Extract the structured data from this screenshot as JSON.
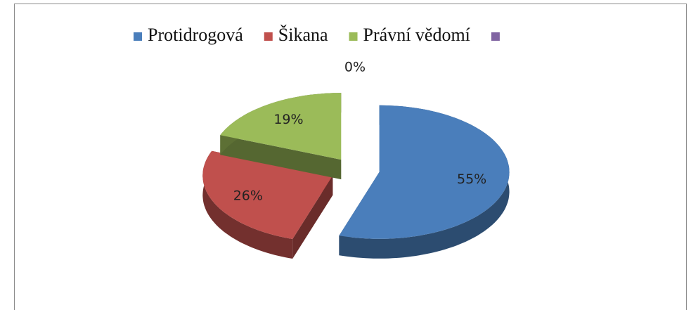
{
  "chart_data": {
    "type": "pie",
    "categories": [
      "Protidrogová",
      "Šikana",
      "Právní vědomí",
      null
    ],
    "values": [
      55,
      26,
      19,
      0
    ],
    "value_labels": [
      "55%",
      "26%",
      "19%",
      "0%"
    ],
    "colors": [
      "#4a7ebb",
      "#c0504d",
      "#9bbb59",
      "#8064a2"
    ],
    "legend": "top",
    "exploded": true,
    "3d": true
  }
}
